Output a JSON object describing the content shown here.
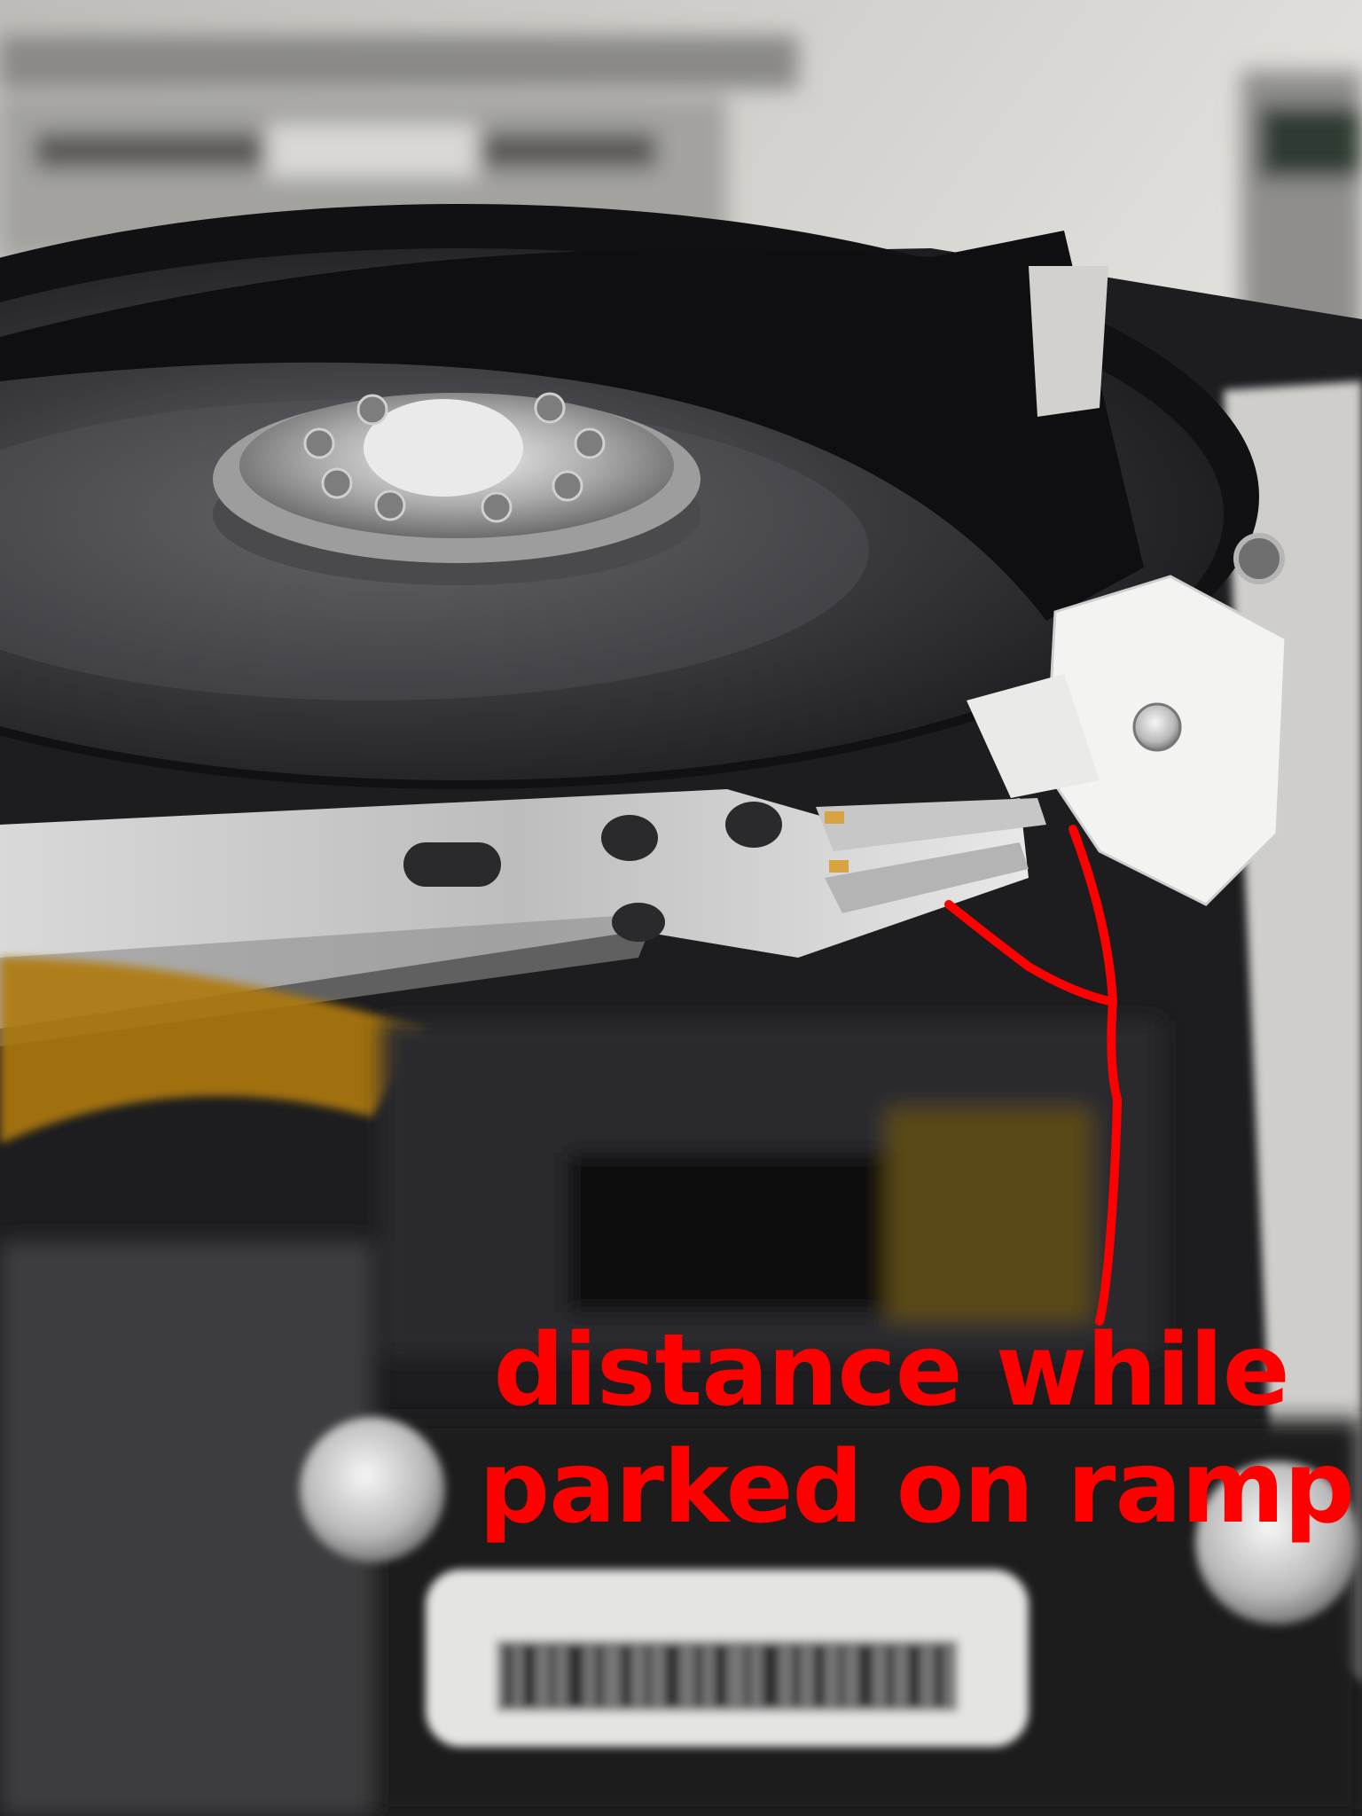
{
  "photo": {
    "subject": "hard-disk-drive-internals",
    "annotation_color": "#ff0000"
  },
  "annotation": {
    "line1": "distance while",
    "line2": "parked on ramp"
  }
}
